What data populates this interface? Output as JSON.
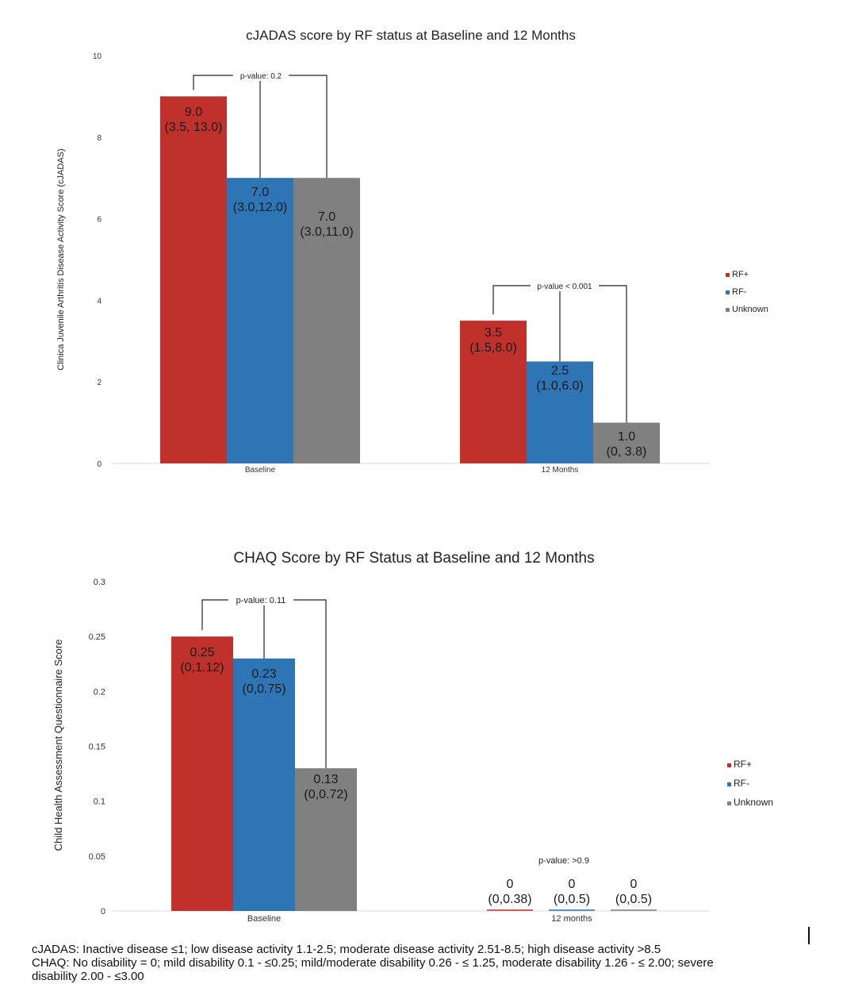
{
  "chart_data": [
    {
      "type": "bar",
      "title": "cJADAS score by RF status at Baseline and 12 Months",
      "ylabel": "Clinica Juvenile Arthritis Disease Activity Score (cJADAS)",
      "xlabel": "",
      "ylim": [
        0,
        10
      ],
      "yticks": [
        "0",
        "2",
        "4",
        "6",
        "8",
        "10"
      ],
      "tick_values": [
        0,
        2,
        4,
        6,
        8,
        10
      ],
      "categories": [
        "Baseline",
        "12 Months"
      ],
      "legend_position": "right",
      "series": [
        {
          "name": "RF+",
          "color": "#c0312b",
          "values": [
            9.0,
            3.5
          ],
          "labels": [
            [
              "9.0",
              "(3.5, 13.0)"
            ],
            [
              "3.5",
              "(1.5,8.0)"
            ]
          ]
        },
        {
          "name": "RF-",
          "color": "#2e75b6",
          "values": [
            7.0,
            2.5
          ],
          "labels": [
            [
              "7.0",
              "(3.0,12.0)"
            ],
            [
              "2.5",
              "(1.0,6.0)"
            ]
          ]
        },
        {
          "name": "Unknown",
          "color": "#808080",
          "values": [
            7.0,
            1.0
          ],
          "labels": [
            [
              "7.0",
              "(3.0,11.0)"
            ],
            [
              "1.0",
              "(0, 3.8)"
            ]
          ]
        }
      ],
      "annotations": [
        "p-value: 0.2",
        "p-value < 0.001"
      ]
    },
    {
      "type": "bar",
      "title": "CHAQ Score by RF Status at Baseline and 12 Months",
      "ylabel": "Child Health Assessment Questionnaire Score",
      "xlabel": "",
      "ylim": [
        0,
        0.3
      ],
      "yticks": [
        "0",
        "0.05",
        "0.1",
        "0.15",
        "0.2",
        "0.25",
        "0.3"
      ],
      "tick_values": [
        0,
        0.05,
        0.1,
        0.15,
        0.2,
        0.25,
        0.3
      ],
      "categories": [
        "Baseline",
        "12 months"
      ],
      "legend_position": "right",
      "series": [
        {
          "name": "RF+",
          "color": "#c0312b",
          "values": [
            0.25,
            0
          ],
          "labels": [
            [
              "0.25",
              "(0,1.12)"
            ],
            [
              "0",
              "(0,0.38)"
            ]
          ]
        },
        {
          "name": "RF-",
          "color": "#2e75b6",
          "values": [
            0.23,
            0
          ],
          "labels": [
            [
              "0.23",
              "(0,0.75)"
            ],
            [
              "0",
              "(0,0.5)"
            ]
          ]
        },
        {
          "name": "Unknown",
          "color": "#808080",
          "values": [
            0.13,
            0
          ],
          "labels": [
            [
              "0.13",
              "(0,0.72)"
            ],
            [
              "0",
              "(0,0.5)"
            ]
          ]
        }
      ],
      "annotations": [
        "p-value: 0.11",
        "p-value: >0.9"
      ]
    }
  ],
  "footnotes": {
    "cjadas": "cJADAS: Inactive disease ≤1; low disease activity 1.1-2.5; moderate disease activity 2.51-8.5; high disease activity >8.5",
    "chaq_line1": "CHAQ: No disability = 0; mild disability 0.1 - ≤0.25; mild/moderate disability 0.26 - ≤ 1.25, moderate disability 1.26 - ≤ 2.00; severe",
    "chaq_line2": "disability 2.00 - ≤3.00"
  }
}
